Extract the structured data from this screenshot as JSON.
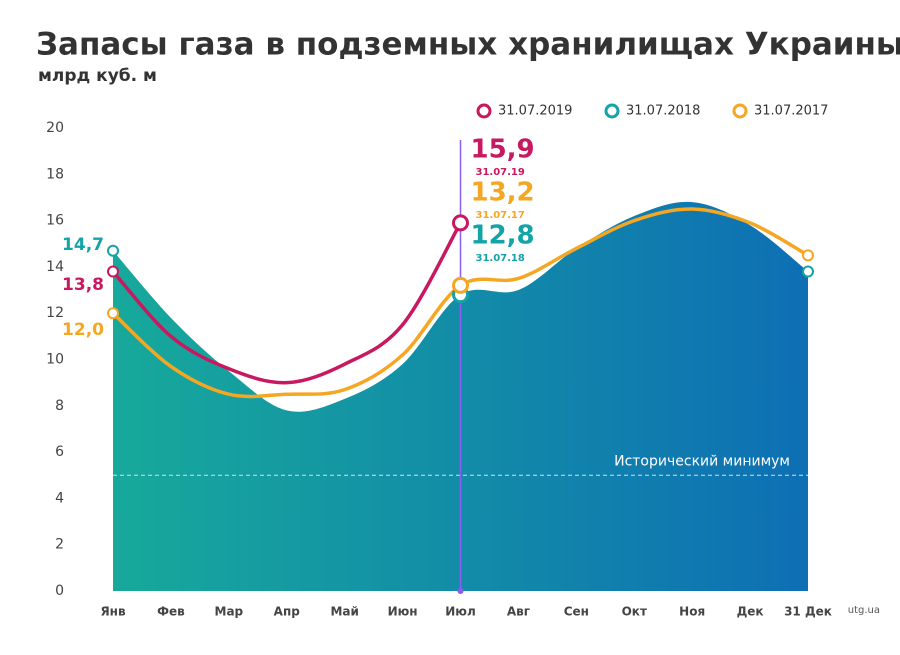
{
  "chart_data": {
    "type": "line",
    "title": "Запасы газа в подземных хранилищах Украины,",
    "subtitle": "млрд куб. м",
    "categories": [
      "Янв",
      "Фев",
      "Мар",
      "Апр",
      "Май",
      "Июн",
      "Июл",
      "Авг",
      "Сен",
      "Окт",
      "Ноя",
      "Дек",
      "31 Дек"
    ],
    "series": [
      {
        "name": "31.07.2019",
        "color": "#c8185f",
        "values": [
          13.8,
          11.0,
          9.6,
          9.0,
          9.8,
          11.5,
          15.9,
          null,
          null,
          null,
          null,
          null,
          null
        ],
        "value_labels": [
          "13,8",
          null,
          null,
          null,
          null,
          null,
          "15,9",
          null,
          null,
          null,
          null,
          null,
          null
        ],
        "point_label": "31.07.19"
      },
      {
        "name": "31.07.2018",
        "color": "#14a3a8",
        "area": true,
        "values": [
          14.7,
          11.8,
          9.5,
          7.8,
          8.3,
          9.8,
          12.8,
          13.0,
          14.8,
          16.2,
          16.8,
          15.8,
          13.8
        ],
        "value_labels": [
          "14,7",
          null,
          null,
          null,
          null,
          null,
          "12,8",
          null,
          null,
          null,
          null,
          null,
          null
        ],
        "point_label": "31.07.18"
      },
      {
        "name": "31.07.2017",
        "color": "#f5a623",
        "values": [
          12.0,
          9.7,
          8.5,
          8.5,
          8.7,
          10.2,
          13.2,
          13.5,
          14.8,
          16.0,
          16.5,
          15.9,
          14.5
        ],
        "value_labels": [
          "12,0",
          null,
          null,
          null,
          null,
          null,
          "13,2",
          null,
          null,
          null,
          null,
          null,
          null
        ],
        "point_label": "31.07.17"
      }
    ],
    "ylim": [
      0,
      20
    ],
    "yticks": [
      0,
      2,
      4,
      6,
      8,
      10,
      12,
      14,
      16,
      18,
      20
    ],
    "reference": {
      "value": 5,
      "label": "Исторический минимум"
    },
    "source": "utg.ua"
  }
}
